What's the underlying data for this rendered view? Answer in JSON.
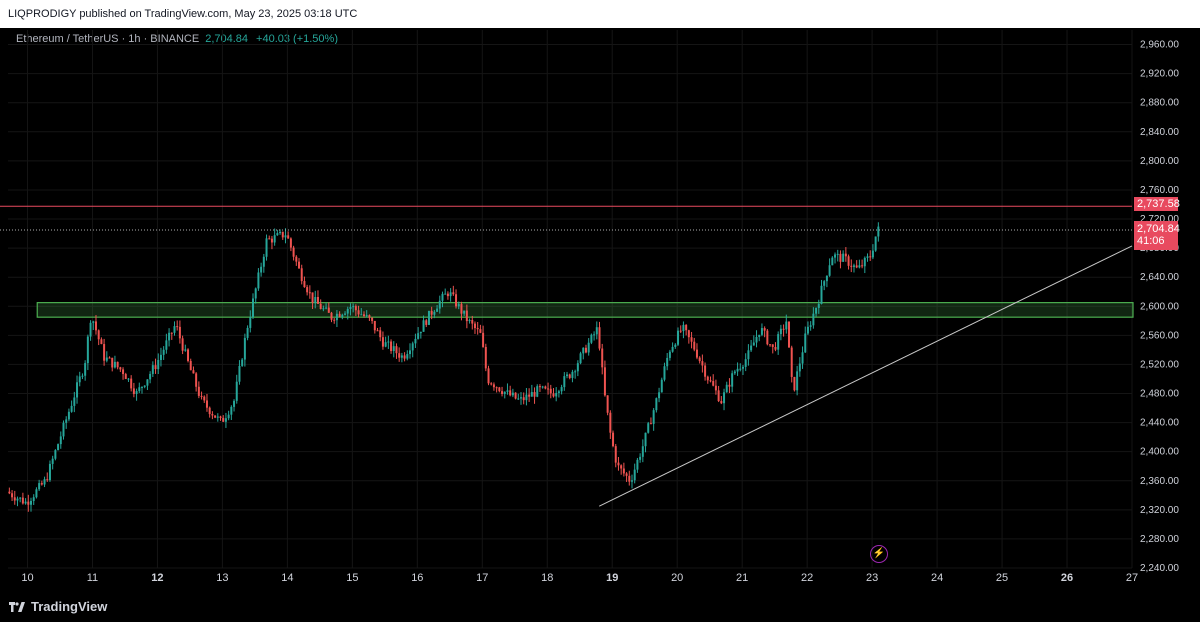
{
  "header": {
    "publisher_line": "LIQPRODIGY published on TradingView.com, May 23, 2025 03:18 UTC"
  },
  "legend": {
    "symbol": "Ethereum / TetherUS · 1h · BINANCE",
    "price": "2,704.84",
    "change": "+40.03 (+1.50%)"
  },
  "price_axis": {
    "ticks": [
      "2,960.00",
      "2,920.00",
      "2,880.00",
      "2,840.00",
      "2,800.00",
      "2,760.00",
      "2,720.00",
      "2,680.00",
      "2,640.00",
      "2,600.00",
      "2,560.00",
      "2,520.00",
      "2,480.00",
      "2,440.00",
      "2,400.00",
      "2,360.00",
      "2,320.00",
      "2,280.00",
      "2,240.00"
    ],
    "resistance_tag": "2,737.58",
    "current_price_tag": "2,704.84",
    "countdown": "41:06"
  },
  "time_axis": {
    "labels": [
      {
        "text": "10",
        "bold": false
      },
      {
        "text": "11",
        "bold": false
      },
      {
        "text": "12",
        "bold": true
      },
      {
        "text": "13",
        "bold": false
      },
      {
        "text": "14",
        "bold": false
      },
      {
        "text": "15",
        "bold": false
      },
      {
        "text": "16",
        "bold": false
      },
      {
        "text": "17",
        "bold": false
      },
      {
        "text": "18",
        "bold": false
      },
      {
        "text": "19",
        "bold": true
      },
      {
        "text": "20",
        "bold": false
      },
      {
        "text": "21",
        "bold": false
      },
      {
        "text": "22",
        "bold": false
      },
      {
        "text": "23",
        "bold": false
      },
      {
        "text": "24",
        "bold": false
      },
      {
        "text": "25",
        "bold": false
      },
      {
        "text": "26",
        "bold": true
      },
      {
        "text": "27",
        "bold": false
      }
    ]
  },
  "footer": {
    "brand": "TradingView"
  },
  "colors": {
    "up": "#26a69a",
    "down": "#ef5350",
    "zone": "#4caf50",
    "resistance": "#e84a5f",
    "trendline": "#c8c8c8"
  },
  "chart_data": {
    "type": "candlestick",
    "ylim": [
      2240,
      2980
    ],
    "x_range_days": [
      9.7,
      27.0
    ],
    "resistance_level": 2737.58,
    "current_price": 2704.84,
    "support_zone": [
      2585,
      2605
    ],
    "trendline": {
      "start": [
        18.8,
        2325
      ],
      "end": [
        27.0,
        2683
      ]
    },
    "price_path": [
      [
        9.7,
        2345
      ],
      [
        10.0,
        2330
      ],
      [
        10.3,
        2360
      ],
      [
        10.6,
        2440
      ],
      [
        10.9,
        2520
      ],
      [
        11.0,
        2590
      ],
      [
        11.2,
        2530
      ],
      [
        11.5,
        2510
      ],
      [
        11.7,
        2480
      ],
      [
        12.0,
        2520
      ],
      [
        12.3,
        2575
      ],
      [
        12.5,
        2520
      ],
      [
        12.7,
        2470
      ],
      [
        13.0,
        2440
      ],
      [
        13.2,
        2470
      ],
      [
        13.4,
        2570
      ],
      [
        13.7,
        2690
      ],
      [
        14.0,
        2700
      ],
      [
        14.2,
        2650
      ],
      [
        14.4,
        2610
      ],
      [
        14.7,
        2585
      ],
      [
        15.0,
        2600
      ],
      [
        15.3,
        2580
      ],
      [
        15.5,
        2550
      ],
      [
        15.8,
        2530
      ],
      [
        16.0,
        2560
      ],
      [
        16.3,
        2600
      ],
      [
        16.5,
        2620
      ],
      [
        16.8,
        2580
      ],
      [
        17.0,
        2560
      ],
      [
        17.1,
        2500
      ],
      [
        17.4,
        2480
      ],
      [
        17.6,
        2470
      ],
      [
        17.9,
        2485
      ],
      [
        18.1,
        2480
      ],
      [
        18.4,
        2510
      ],
      [
        18.6,
        2540
      ],
      [
        18.8,
        2570
      ],
      [
        18.9,
        2480
      ],
      [
        19.0,
        2420
      ],
      [
        19.1,
        2380
      ],
      [
        19.3,
        2360
      ],
      [
        19.5,
        2410
      ],
      [
        19.7,
        2470
      ],
      [
        19.9,
        2540
      ],
      [
        20.1,
        2570
      ],
      [
        20.3,
        2540
      ],
      [
        20.5,
        2500
      ],
      [
        20.7,
        2470
      ],
      [
        20.9,
        2510
      ],
      [
        21.1,
        2530
      ],
      [
        21.3,
        2570
      ],
      [
        21.5,
        2540
      ],
      [
        21.7,
        2580
      ],
      [
        21.8,
        2480
      ],
      [
        22.0,
        2560
      ],
      [
        22.2,
        2610
      ],
      [
        22.4,
        2670
      ],
      [
        22.6,
        2665
      ],
      [
        22.8,
        2650
      ],
      [
        23.0,
        2670
      ],
      [
        23.1,
        2705
      ]
    ]
  }
}
